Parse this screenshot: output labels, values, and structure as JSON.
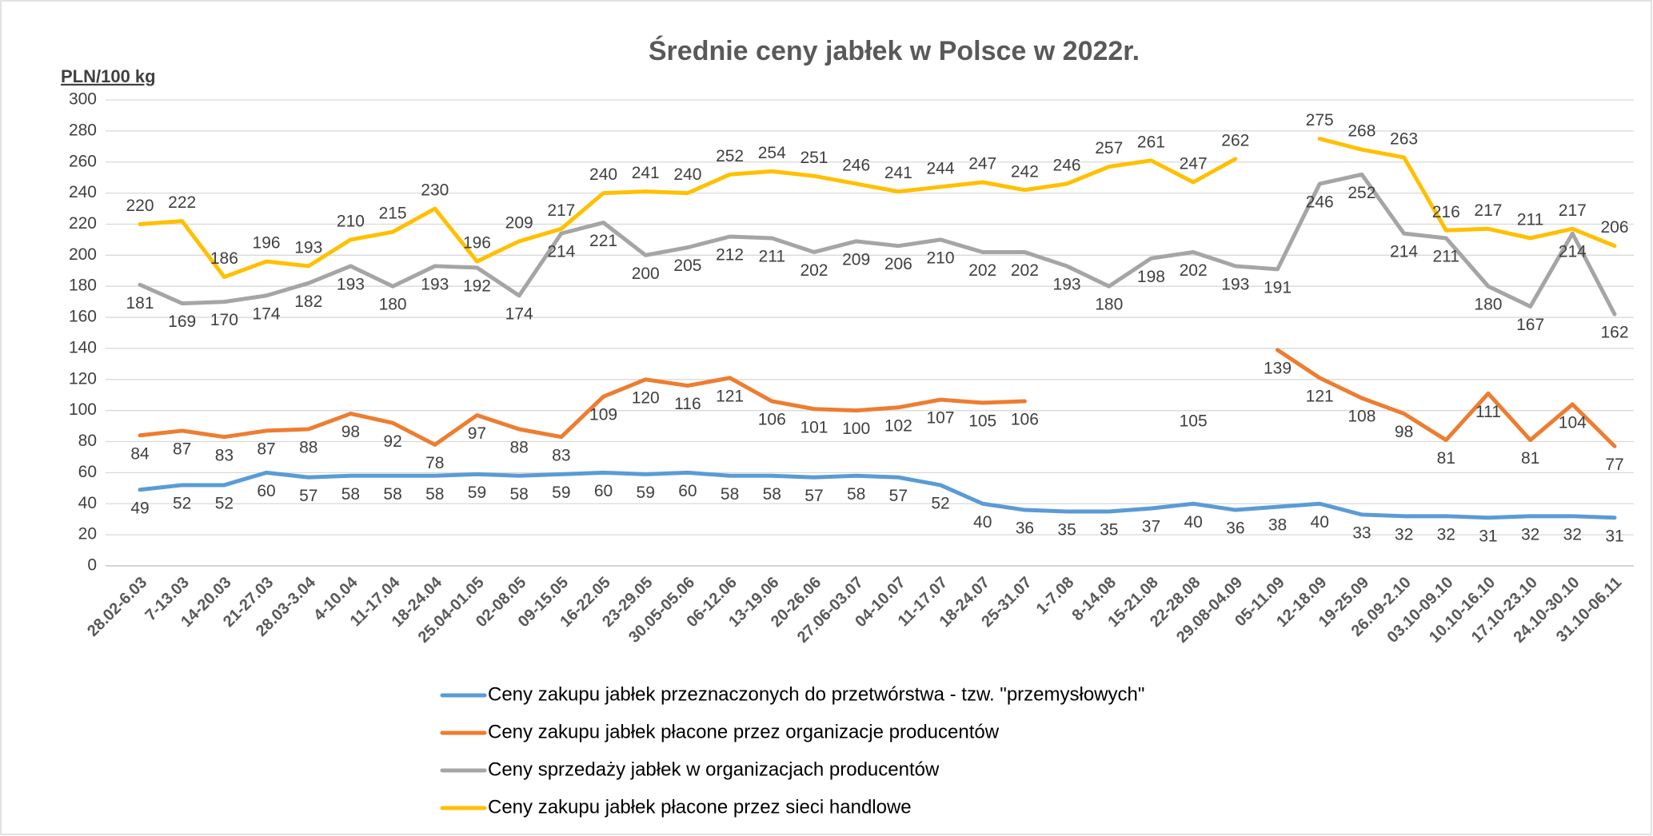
{
  "chart_data": {
    "type": "line",
    "title": "Średnie ceny jabłek w Polsce w 2022r.",
    "y_label": "PLN/100 kg",
    "categories": [
      "28.02-6.03",
      "7-13.03",
      "14-20.03",
      "21-27.03",
      "28.03-3.04",
      "4-10.04",
      "11-17.04",
      "18-24.04",
      "25.04-01.05",
      "02-08.05",
      "09-15.05",
      "16-22.05",
      "23-29.05",
      "30.05-05.06",
      "06-12.06",
      "13-19.06",
      "20-26.06",
      "27.06-03.07",
      "04-10.07",
      "11-17.07",
      "18-24.07",
      "25-31.07",
      "1-7.08",
      "8-14.08",
      "15-21.08",
      "22-28.08",
      "29.08-04.09",
      "05-11.09",
      "12-18.09",
      "19-25.09",
      "26.09-2.10",
      "03.10-09.10",
      "10.10-16.10",
      "17.10-23.10",
      "24.10-30.10",
      "31.10-06.11"
    ],
    "series": [
      {
        "name": "Ceny zakupu jabłek przeznaczonych do przetwórstwa - tzw. \"przemysłowych\"",
        "color": "#5b9bd5",
        "values": [
          49,
          52,
          52,
          60,
          57,
          58,
          58,
          58,
          59,
          58,
          59,
          60,
          59,
          60,
          58,
          58,
          57,
          58,
          57,
          52,
          40,
          36,
          35,
          35,
          37,
          40,
          36,
          38,
          40,
          33,
          32,
          32,
          31,
          32,
          32,
          31
        ]
      },
      {
        "name": "Ceny zakupu jabłek płacone przez organizacje  producentów",
        "color": "#ed7d31",
        "values": [
          84,
          87,
          83,
          87,
          88,
          98,
          92,
          78,
          97,
          88,
          83,
          109,
          120,
          116,
          121,
          106,
          101,
          100,
          102,
          107,
          105,
          106,
          null,
          null,
          null,
          105,
          null,
          139,
          121,
          108,
          98,
          81,
          111,
          81,
          104,
          77
        ]
      },
      {
        "name": "Ceny sprzedaży jabłek w organizacjach  producentów",
        "color": "#a5a5a5",
        "values": [
          181,
          169,
          170,
          174,
          182,
          193,
          180,
          193,
          192,
          174,
          214,
          221,
          200,
          205,
          212,
          211,
          202,
          209,
          206,
          210,
          202,
          202,
          193,
          180,
          198,
          202,
          193,
          191,
          246,
          252,
          214,
          211,
          180,
          167,
          214,
          162
        ]
      },
      {
        "name": "Ceny zakupu jabłek płacone przez sieci handlowe",
        "color": "#ffc000",
        "values": [
          220,
          222,
          186,
          196,
          193,
          210,
          215,
          230,
          196,
          209,
          217,
          240,
          241,
          240,
          252,
          254,
          251,
          246,
          241,
          244,
          247,
          242,
          246,
          257,
          261,
          247,
          262,
          null,
          275,
          268,
          263,
          216,
          217,
          211,
          217,
          206
        ]
      }
    ],
    "ylim": [
      0,
      300
    ],
    "yticks": [
      0,
      20,
      40,
      60,
      80,
      100,
      120,
      140,
      160,
      180,
      200,
      220,
      240,
      260,
      280,
      300
    ],
    "grid": true
  }
}
